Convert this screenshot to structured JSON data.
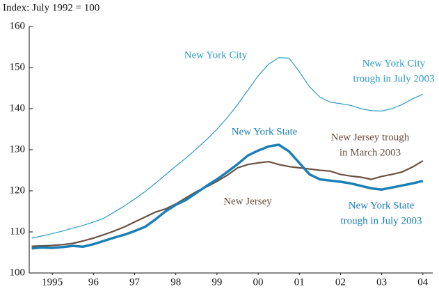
{
  "chart_data": {
    "type": "line",
    "y_label": "Index: July 1992 = 100",
    "x": [
      1995.0,
      1995.25,
      1995.5,
      1995.75,
      1996.0,
      1996.25,
      1996.5,
      1996.75,
      1997.0,
      1997.25,
      1997.5,
      1997.75,
      1998.0,
      1998.25,
      1998.5,
      1998.75,
      1999.0,
      1999.25,
      1999.5,
      1999.75,
      2000.0,
      2000.25,
      2000.5,
      2000.75,
      2001.0,
      2001.25,
      2001.5,
      2001.75,
      2002.0,
      2002.25,
      2002.5,
      2002.75,
      2003.0,
      2003.25,
      2003.5,
      2003.75,
      2004.0,
      2004.25,
      2004.5
    ],
    "series": [
      {
        "name": "New York City",
        "color": "#2a9bc4",
        "width": 1.2,
        "values": [
          108.5,
          109.0,
          109.6,
          110.2,
          110.9,
          111.6,
          112.4,
          113.3,
          114.8,
          116.3,
          118.0,
          119.8,
          121.8,
          123.9,
          126.0,
          128.0,
          130.2,
          132.5,
          135.0,
          137.8,
          141.0,
          144.5,
          148.0,
          150.8,
          152.4,
          152.3,
          149.0,
          145.3,
          142.8,
          141.6,
          141.2,
          140.8,
          140.0,
          139.5,
          139.4,
          140.0,
          141.0,
          142.4,
          143.5
        ]
      },
      {
        "name": "New Jersey",
        "color": "#6b5040",
        "width": 2.2,
        "values": [
          106.5,
          106.6,
          106.7,
          106.9,
          107.2,
          107.8,
          108.5,
          109.3,
          110.2,
          111.2,
          112.4,
          113.6,
          114.8,
          115.6,
          116.8,
          118.3,
          119.8,
          121.0,
          122.3,
          123.8,
          125.6,
          126.4,
          126.8,
          127.1,
          126.4,
          125.9,
          125.6,
          125.3,
          125.0,
          124.8,
          124.0,
          123.6,
          123.3,
          122.8,
          123.5,
          124.0,
          124.6,
          125.8,
          127.3
        ]
      },
      {
        "name": "New York State",
        "color": "#1a7fb5",
        "width": 3.5,
        "values": [
          106.0,
          106.2,
          106.1,
          106.3,
          106.6,
          106.4,
          107.0,
          107.8,
          108.6,
          109.3,
          110.2,
          111.2,
          113.0,
          115.0,
          116.6,
          117.8,
          119.5,
          121.2,
          122.8,
          124.6,
          126.5,
          128.6,
          129.8,
          130.8,
          131.2,
          129.6,
          126.8,
          124.0,
          122.8,
          122.5,
          122.2,
          121.8,
          121.2,
          120.6,
          120.3,
          120.8,
          121.3,
          121.8,
          122.4
        ]
      }
    ],
    "annotations": [
      {
        "lines": [
          "New York City"
        ],
        "color": "#2a9bc4"
      },
      {
        "lines": [
          "New York City",
          "trough in July 2003"
        ],
        "color": "#2a9bc4"
      },
      {
        "lines": [
          "New York State"
        ],
        "color": "#1a7fb5"
      },
      {
        "lines": [
          "New Jersey trough",
          "in March 2003"
        ],
        "color": "#6b5040"
      },
      {
        "lines": [
          "New Jersey"
        ],
        "color": "#6b5040"
      },
      {
        "lines": [
          "New York State",
          "trough in July 2003"
        ],
        "color": "#1a7fb5"
      }
    ],
    "xlim": [
      1994.94,
      2004.74
    ],
    "xticks": [
      {
        "value": 1995.5,
        "label": "1995"
      },
      {
        "value": 1996.5,
        "label": "96"
      },
      {
        "value": 1997.5,
        "label": "97"
      },
      {
        "value": 1998.5,
        "label": "98"
      },
      {
        "value": 1999.5,
        "label": "99"
      },
      {
        "value": 2000.5,
        "label": "00"
      },
      {
        "value": 2001.5,
        "label": "01"
      },
      {
        "value": 2002.5,
        "label": "02"
      },
      {
        "value": 2003.5,
        "label": "03"
      },
      {
        "value": 2004.5,
        "label": "04"
      }
    ],
    "ylim": [
      100,
      160
    ],
    "yticks": [
      100,
      110,
      120,
      130,
      140,
      150,
      160
    ],
    "grid": false
  }
}
